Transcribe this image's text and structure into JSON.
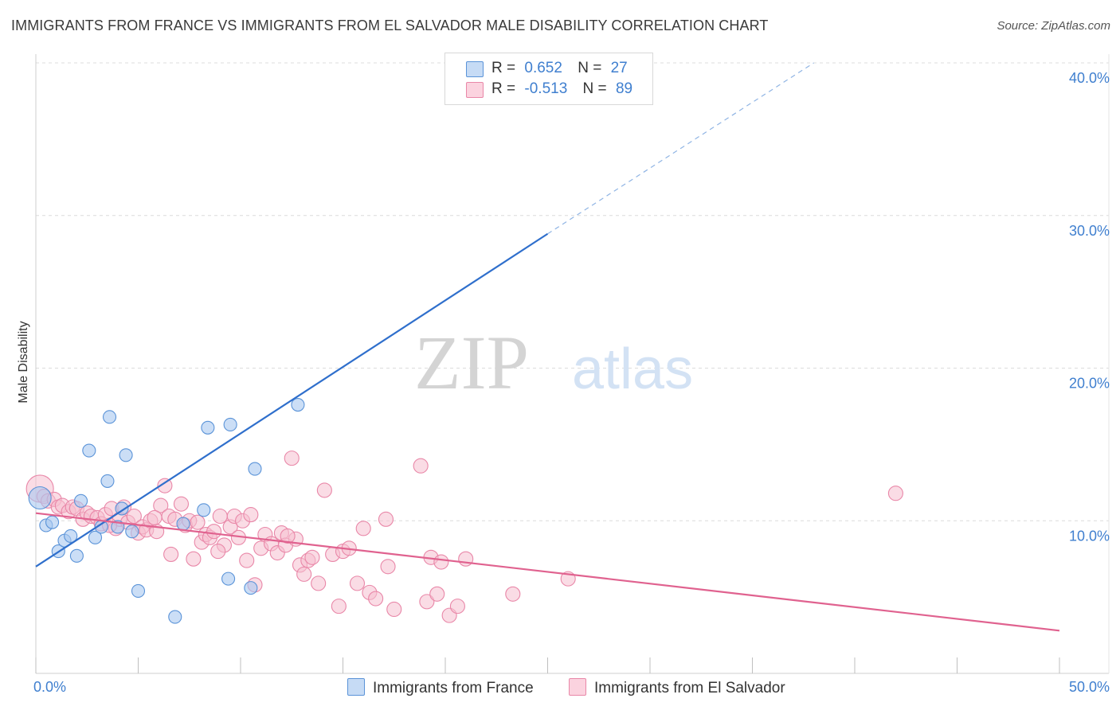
{
  "title": "IMMIGRANTS FROM FRANCE VS IMMIGRANTS FROM EL SALVADOR MALE DISABILITY CORRELATION CHART",
  "source": "Source: ZipAtlas.com",
  "watermark": {
    "zip": "ZIP",
    "atlas": "atlas"
  },
  "legend": {
    "rows": [
      {
        "r_label": "R =",
        "r_value": "0.652",
        "n_label": "N =",
        "n_value": "27"
      },
      {
        "r_label": "R =",
        "r_value": "-0.513",
        "n_label": "N =",
        "n_value": "89"
      }
    ]
  },
  "bottom_legend": [
    "Immigrants from France",
    "Immigrants from El Salvador"
  ],
  "colors": {
    "france_fill": "#a9c8f0",
    "france_stroke": "#5a93d8",
    "france_line": "#2f6fcc",
    "salvador_fill": "#f6bfd0",
    "salvador_stroke": "#e987a8",
    "salvador_line": "#e0628f",
    "grid": "#dcdcdc",
    "tick_text": "#3f7fcf"
  },
  "chart_data": {
    "type": "scatter",
    "title": "IMMIGRANTS FROM FRANCE VS IMMIGRANTS FROM EL SALVADOR MALE DISABILITY CORRELATION CHART",
    "xlabel": "",
    "ylabel": "Male Disability",
    "xlim": [
      0,
      50
    ],
    "ylim": [
      0,
      40
    ],
    "x_tick_labels": [
      "0.0%",
      "50.0%"
    ],
    "y_ticks": [
      10,
      20,
      30,
      40
    ],
    "y_tick_labels": [
      "10.0%",
      "20.0%",
      "30.0%",
      "40.0%"
    ],
    "series": [
      {
        "name": "Immigrants from France",
        "r": 0.652,
        "n": 27,
        "trend": {
          "x0": 0,
          "y0": 7.0,
          "x1": 25,
          "y1": 28.8,
          "dash_x1": 38,
          "dash_y1": 40.0
        },
        "points": [
          [
            0.2,
            11.5
          ],
          [
            0.5,
            9.7
          ],
          [
            0.8,
            9.9
          ],
          [
            1.1,
            8.0
          ],
          [
            1.4,
            8.7
          ],
          [
            1.7,
            9.0
          ],
          [
            2.0,
            7.7
          ],
          [
            2.2,
            11.3
          ],
          [
            2.6,
            14.6
          ],
          [
            2.9,
            8.9
          ],
          [
            3.2,
            9.6
          ],
          [
            3.5,
            12.6
          ],
          [
            3.6,
            16.8
          ],
          [
            4.2,
            10.8
          ],
          [
            4.4,
            14.3
          ],
          [
            4.7,
            9.3
          ],
          [
            5.0,
            5.4
          ],
          [
            6.8,
            3.7
          ],
          [
            7.2,
            9.8
          ],
          [
            8.2,
            10.7
          ],
          [
            8.4,
            16.1
          ],
          [
            9.4,
            6.2
          ],
          [
            9.5,
            16.3
          ],
          [
            10.5,
            5.6
          ],
          [
            10.7,
            13.4
          ],
          [
            12.8,
            17.6
          ],
          [
            4.0,
            9.6
          ]
        ]
      },
      {
        "name": "Immigrants from El Salvador",
        "r": -0.513,
        "n": 89,
        "trend": {
          "x0": 0,
          "y0": 10.5,
          "x1": 50,
          "y1": 2.8
        },
        "points": [
          [
            0.2,
            12.1
          ],
          [
            0.4,
            11.6
          ],
          [
            0.6,
            11.3
          ],
          [
            0.9,
            11.4
          ],
          [
            1.1,
            10.9
          ],
          [
            1.3,
            11.0
          ],
          [
            1.6,
            10.6
          ],
          [
            1.8,
            10.9
          ],
          [
            2.0,
            10.8
          ],
          [
            2.3,
            10.1
          ],
          [
            2.5,
            10.5
          ],
          [
            2.7,
            10.3
          ],
          [
            3.0,
            10.2
          ],
          [
            3.2,
            9.8
          ],
          [
            3.4,
            10.4
          ],
          [
            3.7,
            10.8
          ],
          [
            3.9,
            9.5
          ],
          [
            4.1,
            10.1
          ],
          [
            4.3,
            10.9
          ],
          [
            4.5,
            9.9
          ],
          [
            4.8,
            10.3
          ],
          [
            5.0,
            9.2
          ],
          [
            5.2,
            9.6
          ],
          [
            5.4,
            9.4
          ],
          [
            5.6,
            10.0
          ],
          [
            5.9,
            9.3
          ],
          [
            6.1,
            11.0
          ],
          [
            6.3,
            12.3
          ],
          [
            6.5,
            10.3
          ],
          [
            6.6,
            7.8
          ],
          [
            6.8,
            10.1
          ],
          [
            7.1,
            11.1
          ],
          [
            7.3,
            9.7
          ],
          [
            7.5,
            10.0
          ],
          [
            7.7,
            7.5
          ],
          [
            7.9,
            9.9
          ],
          [
            8.1,
            8.6
          ],
          [
            8.3,
            9.1
          ],
          [
            8.5,
            8.9
          ],
          [
            8.7,
            9.3
          ],
          [
            9.0,
            10.3
          ],
          [
            9.2,
            8.4
          ],
          [
            9.5,
            9.6
          ],
          [
            9.7,
            10.3
          ],
          [
            9.9,
            8.9
          ],
          [
            10.1,
            10.0
          ],
          [
            10.3,
            7.4
          ],
          [
            10.5,
            10.4
          ],
          [
            10.7,
            5.8
          ],
          [
            11.0,
            8.2
          ],
          [
            11.2,
            9.1
          ],
          [
            11.5,
            8.5
          ],
          [
            11.8,
            7.9
          ],
          [
            12.0,
            9.2
          ],
          [
            12.2,
            8.4
          ],
          [
            12.5,
            14.1
          ],
          [
            12.7,
            8.8
          ],
          [
            12.9,
            7.1
          ],
          [
            13.1,
            6.5
          ],
          [
            13.3,
            7.4
          ],
          [
            13.5,
            7.6
          ],
          [
            13.8,
            5.9
          ],
          [
            14.1,
            12.0
          ],
          [
            14.5,
            7.8
          ],
          [
            14.8,
            4.4
          ],
          [
            15.0,
            8.0
          ],
          [
            15.3,
            8.2
          ],
          [
            15.7,
            5.9
          ],
          [
            16.0,
            9.5
          ],
          [
            16.3,
            5.3
          ],
          [
            16.6,
            4.9
          ],
          [
            17.1,
            10.1
          ],
          [
            17.2,
            7.0
          ],
          [
            17.5,
            4.2
          ],
          [
            18.8,
            13.6
          ],
          [
            19.1,
            4.7
          ],
          [
            19.3,
            7.6
          ],
          [
            19.6,
            5.2
          ],
          [
            19.8,
            7.3
          ],
          [
            20.2,
            3.8
          ],
          [
            20.6,
            4.4
          ],
          [
            21.0,
            7.5
          ],
          [
            23.3,
            5.2
          ],
          [
            26.0,
            6.2
          ],
          [
            42.0,
            11.8
          ],
          [
            12.3,
            9.0
          ],
          [
            5.8,
            10.2
          ],
          [
            8.9,
            8.0
          ],
          [
            3.6,
            9.7
          ]
        ]
      }
    ]
  }
}
